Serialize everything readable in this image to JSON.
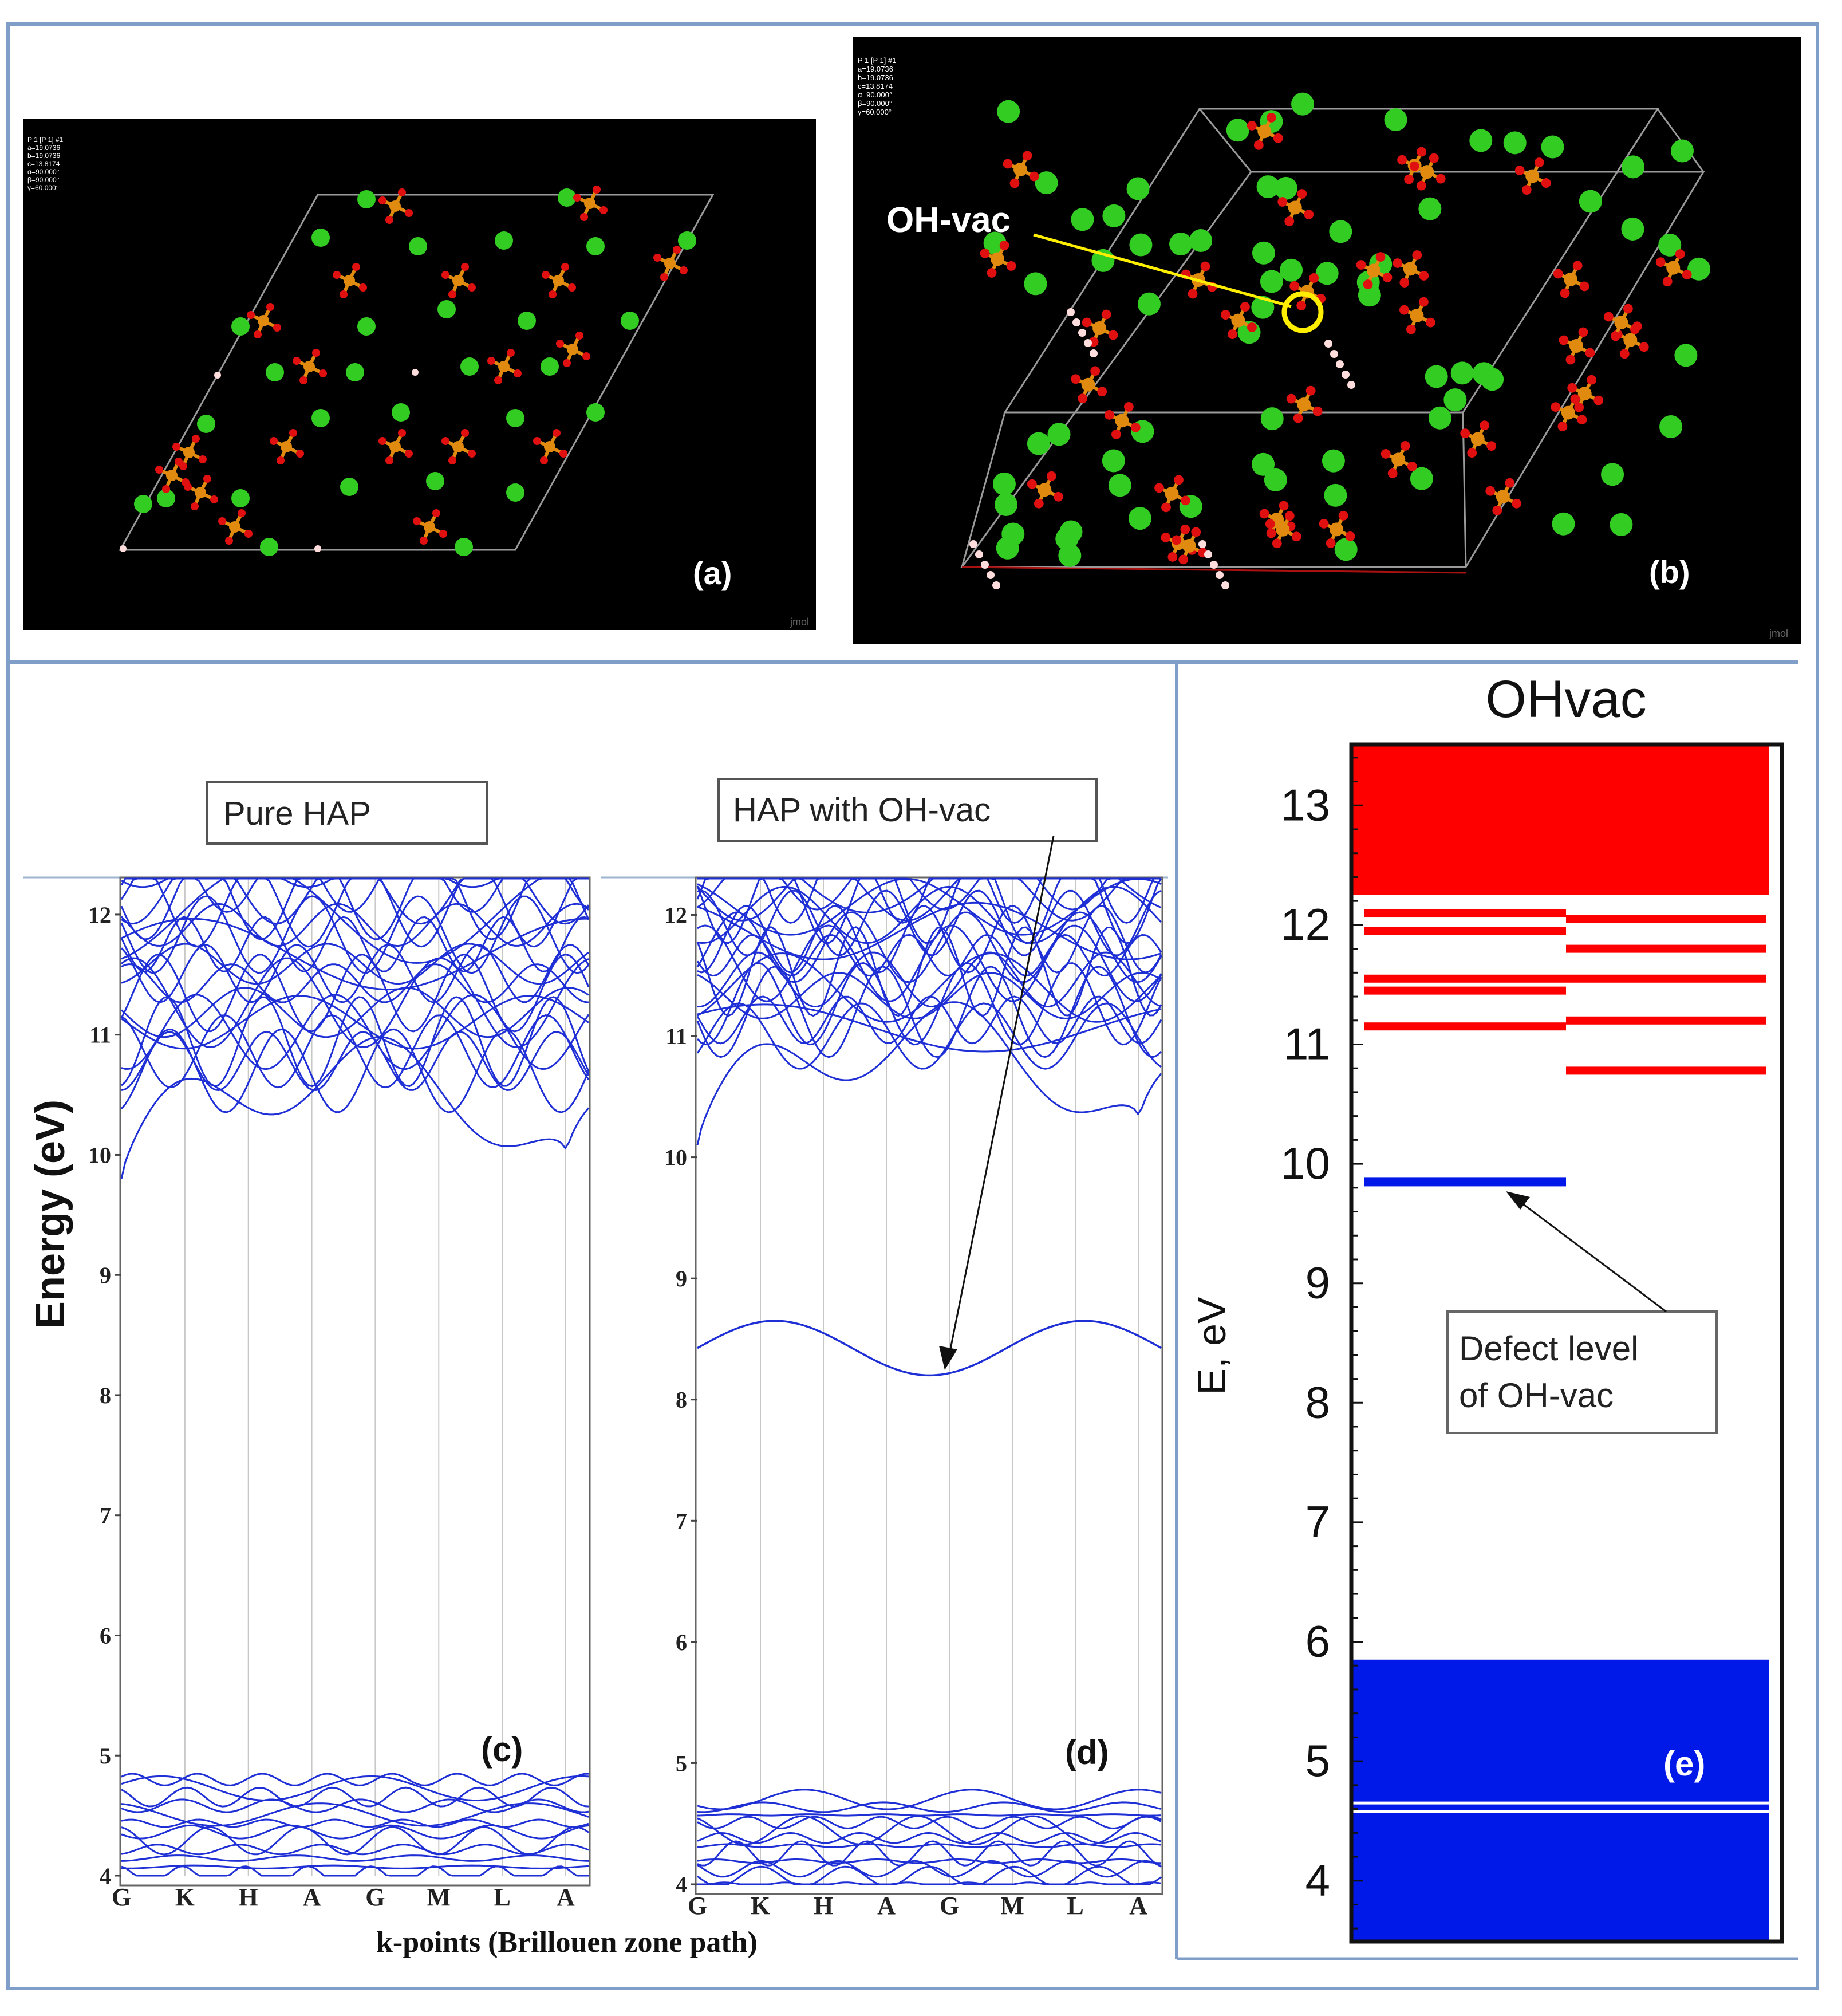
{
  "panel_a": {
    "label": "(a)",
    "header_lines": [
      "P 1 [P 1] #1",
      "a=19.0736",
      "b=19.0736",
      "c=13.8174",
      "α=90.000°",
      "β=90.000°",
      "γ=60.000°"
    ],
    "watermark": "jmol"
  },
  "panel_b": {
    "label": "(b)",
    "header_lines": [
      "P 1 [P 1] #1",
      "a=19.0736",
      "b=19.0736",
      "c=13.8174",
      "α=90.000°",
      "β=90.000°",
      "γ=60.000°"
    ],
    "annotation": "OH-vac",
    "watermark": "jmol"
  },
  "colors": {
    "band_blue": "#1f2fd6",
    "red_level": "#ff0000",
    "blue_level": "#0018e8",
    "frame_blue": "#7f9fc8",
    "calcium_green": "#33cc22",
    "phosphorus_orange": "#e08a10",
    "oxygen_red": "#e01010"
  },
  "chart_data": [
    {
      "type": "line",
      "panel": "(c)",
      "title": "Pure HAP",
      "ylabel": "Energy (eV)",
      "xlabel": "k-points (Brillouen zone path)",
      "x_ticks": [
        "G",
        "K",
        "H",
        "A",
        "G",
        "M",
        "L",
        "A"
      ],
      "y_ticks": [
        "4",
        "5",
        "6",
        "7",
        "8",
        "9",
        "10",
        "11",
        "12"
      ],
      "ylim": [
        4,
        12.3
      ],
      "conduction_band_minimum": {
        "k_point": "G",
        "energy_eV": 9.8
      },
      "valence_band_maximum_eV": 4.8
    },
    {
      "type": "line",
      "panel": "(d)",
      "title": "HAP with OH-vac",
      "x_ticks": [
        "G",
        "K",
        "H",
        "A",
        "G",
        "M",
        "L",
        "A"
      ],
      "y_ticks": [
        "4",
        "5",
        "6",
        "7",
        "8",
        "9",
        "10",
        "11",
        "12"
      ],
      "ylim": [
        4,
        12.3
      ],
      "defect_band": {
        "min_k_point": "G",
        "min_energy_eV": 8.2,
        "max_energy_eV": 8.65
      },
      "conduction_band_minimum_eV": 10.1,
      "valence_band_maximum_eV": 4.7
    },
    {
      "type": "bar",
      "panel": "(e)",
      "title": "OHvac",
      "ylabel": "E, eV",
      "y_ticks": [
        "4",
        "5",
        "6",
        "7",
        "8",
        "9",
        "10",
        "11",
        "12",
        "13"
      ],
      "ylim": [
        3.5,
        13.5
      ],
      "annotation": [
        "Defect level",
        "of OH-vac"
      ],
      "valence_block": {
        "from": 3.5,
        "to": 5.85,
        "gap_lines": [
          4.58,
          4.65
        ]
      },
      "defect_level": 9.85,
      "conduction_block": {
        "from": 12.25,
        "to": 13.5
      },
      "red_levels_left": [
        11.15,
        11.45,
        11.55,
        11.95,
        12.1
      ],
      "red_levels_right": [
        10.78,
        11.2,
        11.55,
        11.8,
        12.05
      ]
    }
  ]
}
